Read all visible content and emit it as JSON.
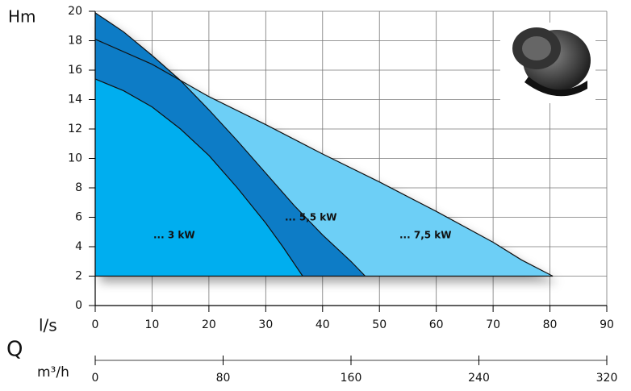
{
  "chart_data": {
    "type": "area",
    "y_label": "Hm",
    "x_label": "l/s",
    "quantity_label": "Q",
    "x2_label": "m³/h",
    "xlim": [
      0,
      90
    ],
    "xticks": [
      0,
      10,
      20,
      30,
      40,
      50,
      60,
      70,
      80,
      90
    ],
    "ylim": [
      0,
      20
    ],
    "yticks": [
      0,
      2,
      4,
      6,
      8,
      10,
      12,
      14,
      16,
      18,
      20
    ],
    "x2lim": [
      0,
      320
    ],
    "x2ticks": [
      0,
      80,
      160,
      240,
      320
    ],
    "baseline": 2,
    "grid": true,
    "series": [
      {
        "name": "... 7,5 kW",
        "color": "#6dcff6",
        "x": [
          0,
          10,
          15,
          20,
          30,
          40,
          50,
          60,
          70,
          75,
          80.5
        ],
        "values": [
          18.1,
          16.4,
          15.3,
          14.2,
          12.3,
          10.3,
          8.4,
          6.4,
          4.3,
          3.1,
          2
        ]
      },
      {
        "name": "... 5,5 kW",
        "color": "#0f7cc6",
        "x": [
          0,
          5,
          10,
          15,
          20,
          25,
          30,
          35,
          40,
          45,
          47.5
        ],
        "values": [
          19.9,
          18.6,
          17.0,
          15.3,
          13.3,
          11.2,
          9.0,
          6.8,
          4.8,
          3.0,
          2
        ]
      },
      {
        "name": "... 3 kW",
        "color": "#00aeef",
        "x": [
          0,
          5,
          10,
          15,
          20,
          25,
          30,
          33,
          36.5
        ],
        "values": [
          15.4,
          14.6,
          13.5,
          12.0,
          10.2,
          8.0,
          5.6,
          4.0,
          2
        ]
      }
    ]
  }
}
